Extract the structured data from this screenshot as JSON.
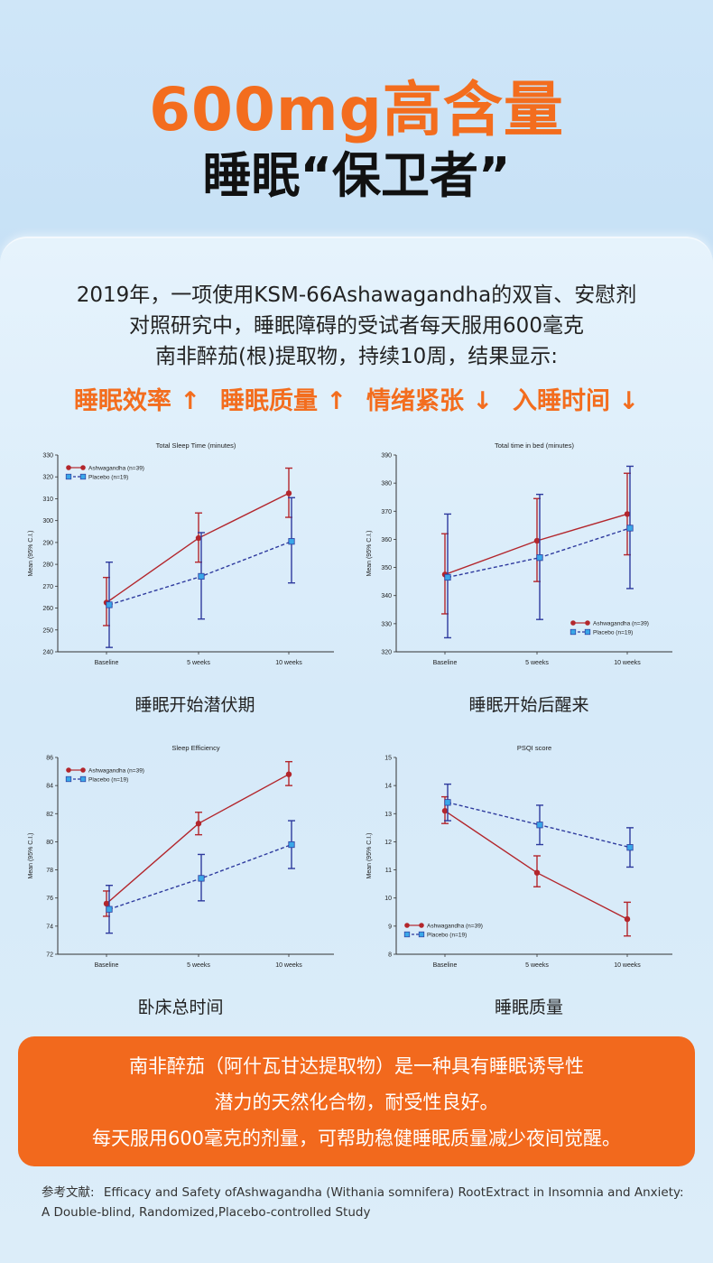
{
  "header": {
    "title_line1": "600mg高含量",
    "title_line2": "睡眠“保卫者”"
  },
  "intro": {
    "line1": "2019年，一项使用KSM-66Ashawagandha的双盲、安慰剂",
    "line2": "对照研究中，睡眠障碍的受试者每天服用600毫克",
    "line3": "南非醉茄(根)提取物，持续10周，结果显示:"
  },
  "highlights": [
    "睡眠效率 ↑",
    "睡眠质量 ↑",
    "情绪紧张 ↓",
    "入睡时间 ↓"
  ],
  "captions": [
    "睡眠开始潜伏期",
    "睡眠开始后醒来",
    "卧床总时间",
    "睡眠质量"
  ],
  "colors": {
    "orange": "#f36d1e",
    "ashwa": "#b3262c",
    "placebo": "#2e3a9e",
    "placebo_marker": "#3aa7e8"
  },
  "chart_data": [
    {
      "type": "line",
      "title": "Total Sleep Time (minutes)",
      "ylabel": "Mean (95% C.I.)",
      "categories": [
        "Baseline",
        "5 weeks",
        "10 weeks"
      ],
      "ylim": [
        240,
        330
      ],
      "yticks": [
        "240",
        "250",
        "260",
        "270",
        "280",
        "290",
        "300",
        "310",
        "320",
        "330"
      ],
      "legend_position": "top-left",
      "series": [
        {
          "name": "Ashwagandha (n=39)",
          "values": [
            262.5,
            292,
            312.5
          ],
          "lower": [
            252,
            281,
            301.5
          ],
          "upper": [
            274,
            303.5,
            324
          ]
        },
        {
          "name": "Placebo (n=19)",
          "values": [
            261.5,
            274.5,
            290.5
          ],
          "lower": [
            242,
            255,
            271.5
          ],
          "upper": [
            281,
            294.5,
            310.5
          ]
        }
      ]
    },
    {
      "type": "line",
      "title": "Total time in bed (minutes)",
      "ylabel": "Mean (95% C.I.)",
      "categories": [
        "Baseline",
        "5 weeks",
        "10 weeks"
      ],
      "ylim": [
        320,
        390
      ],
      "yticks": [
        "320",
        "330",
        "340",
        "350",
        "360",
        "370",
        "380",
        "390"
      ],
      "legend_position": "bottom-right",
      "series": [
        {
          "name": "Ashwagandha (n=39)",
          "values": [
            347.5,
            359.5,
            369
          ],
          "lower": [
            333.5,
            345,
            354.5
          ],
          "upper": [
            362,
            374.5,
            383.5
          ]
        },
        {
          "name": "Placebo (n=19)",
          "values": [
            346.5,
            353.5,
            364
          ],
          "lower": [
            325,
            331.5,
            342.5
          ],
          "upper": [
            369,
            376,
            386
          ]
        }
      ]
    },
    {
      "type": "line",
      "title": "Sleep Efficiency",
      "ylabel": "Mean (95% C.I.)",
      "categories": [
        "Baseline",
        "5 weeks",
        "10 weeks"
      ],
      "ylim": [
        72,
        86
      ],
      "yticks": [
        "72",
        "74",
        "76",
        "78",
        "80",
        "82",
        "84",
        "86"
      ],
      "legend_position": "top-left",
      "series": [
        {
          "name": "Ashwagandha (n=39)",
          "values": [
            75.6,
            81.3,
            84.8
          ],
          "lower": [
            74.7,
            80.5,
            84
          ],
          "upper": [
            76.5,
            82.1,
            85.7
          ]
        },
        {
          "name": "Placebo (n=19)",
          "values": [
            75.2,
            77.4,
            79.8
          ],
          "lower": [
            73.5,
            75.8,
            78.1
          ],
          "upper": [
            76.9,
            79.1,
            81.5
          ]
        }
      ]
    },
    {
      "type": "line",
      "title": "PSQI score",
      "ylabel": "Mean (95% C.I.)",
      "categories": [
        "Baseline",
        "5 weeks",
        "10 weeks"
      ],
      "ylim": [
        8,
        15
      ],
      "yticks": [
        "8",
        "9",
        "10",
        "11",
        "12",
        "13",
        "14",
        "15"
      ],
      "legend_position": "bottom-left",
      "series": [
        {
          "name": "Ashwagandha (n=39)",
          "values": [
            13.1,
            10.9,
            9.25
          ],
          "lower": [
            12.65,
            10.4,
            8.65
          ],
          "upper": [
            13.6,
            11.5,
            9.85
          ]
        },
        {
          "name": "Placebo (n=19)",
          "values": [
            13.4,
            12.6,
            11.8
          ],
          "lower": [
            12.75,
            11.9,
            11.1
          ],
          "upper": [
            14.05,
            13.3,
            12.5
          ]
        }
      ]
    }
  ],
  "summary": {
    "line1": "南非醉茄（阿什瓦甘达提取物）是一种具有睡眠诱导性",
    "line2": "潜力的天然化合物，耐受性良好。",
    "line3": "每天服用600毫克的剂量，可帮助稳健睡眠质量减少夜间觉醒。"
  },
  "reference": {
    "label": "参考文献:",
    "text": "Efficacy and Safety ofAshwagandha (Withania somnifera) RootExtract in Insomnia and Anxiety: A Double-blind, Randomized,Placebo-controlled Study"
  }
}
